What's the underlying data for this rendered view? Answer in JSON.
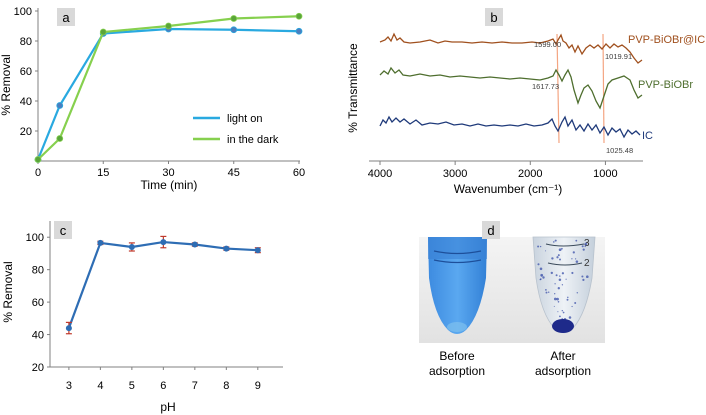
{
  "panels": [
    {
      "letter": "a"
    },
    {
      "letter": "b"
    },
    {
      "letter": "c"
    },
    {
      "letter": "d"
    }
  ],
  "chart_data": [
    {
      "panel": "a",
      "type": "line",
      "xlabel": "Time (min)",
      "ylabel": "% Removal",
      "xlim": [
        0,
        60
      ],
      "ylim": [
        0,
        100
      ],
      "xticks": [
        0,
        15,
        30,
        45,
        60
      ],
      "yticks": [
        20,
        40,
        60,
        80,
        100
      ],
      "legend_position": "bottom-right",
      "series": [
        {
          "name": "light on",
          "color": "#29a9e0",
          "x": [
            0,
            5,
            15,
            30,
            45,
            60
          ],
          "y": [
            1,
            37,
            85,
            88,
            87.5,
            86.5
          ]
        },
        {
          "name": "in the dark",
          "color": "#86d04e",
          "x": [
            0,
            5,
            15,
            30,
            45,
            60
          ],
          "y": [
            1,
            15,
            86,
            90,
            95,
            96.5
          ]
        }
      ]
    },
    {
      "panel": "b",
      "type": "line",
      "xlabel": "Wavenumber (cm⁻¹)",
      "ylabel": "% Transmittance",
      "xlim": [
        4000,
        500
      ],
      "xticks": [
        4000,
        3000,
        2000,
        1000
      ],
      "series": [
        {
          "name": "PVP-BiOBr@IC",
          "color": "#a0501e"
        },
        {
          "name": "PVP-BiOBr",
          "color": "#4e6e2e"
        },
        {
          "name": "IC",
          "color": "#1f3a7a"
        }
      ],
      "annotations": [
        "1599.00",
        "1019.91",
        "1617.73",
        "1025.48"
      ]
    },
    {
      "panel": "c",
      "type": "line",
      "xlabel": "pH",
      "ylabel": "% Removal",
      "xlim": [
        2.4,
        9.8
      ],
      "ylim": [
        20,
        110
      ],
      "xticks": [
        3,
        4,
        5,
        6,
        7,
        8,
        9
      ],
      "yticks": [
        20,
        40,
        60,
        80,
        100
      ],
      "series": [
        {
          "color": "#2e6db4",
          "x": [
            3,
            4,
            5,
            6,
            7,
            8,
            9
          ],
          "y": [
            44,
            96.5,
            94,
            97,
            95.5,
            93,
            92
          ],
          "err": [
            3.5,
            1,
            2.5,
            3.5,
            1,
            1,
            1.5
          ]
        }
      ]
    }
  ],
  "photo": {
    "labels": [
      [
        "Before",
        "adsorption"
      ],
      [
        "After",
        "adsorption"
      ]
    ],
    "tube_marks": [
      "3",
      "2"
    ]
  }
}
